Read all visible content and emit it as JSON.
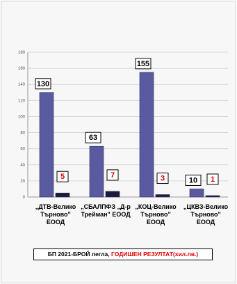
{
  "chart_data": {
    "type": "bar",
    "categories": [
      [
        "„ДТВ-Велико",
        "Търново\"",
        "ЕООД"
      ],
      [
        "„СБАЛПФЗ „Д-р",
        "Трейман\" ЕООД"
      ],
      [
        "„КОЦ-Велико",
        "Търново\"",
        "ЕООД"
      ],
      [
        "„ЦКВЗ-Велико",
        "Търново\"",
        "ЕООД"
      ]
    ],
    "series": [
      {
        "values": [
          130,
          63,
          155,
          10
        ],
        "color": "#5a5aa0",
        "label_color": "#000000"
      },
      {
        "values": [
          5,
          7,
          3,
          1
        ],
        "color": "#1c1c3a",
        "label_color": "#e00000"
      }
    ],
    "y_ticks": [
      "0",
      "20",
      "40",
      "60",
      "80",
      "100",
      "120",
      "140",
      "160",
      "180"
    ],
    "ylim": [
      0,
      180
    ],
    "grid": true,
    "legend": {
      "part1": "БП 2021-БРОЙ легла, ",
      "part2": "ГОДИШЕН РЕЗУЛТАТ(хил.лв.)"
    }
  }
}
